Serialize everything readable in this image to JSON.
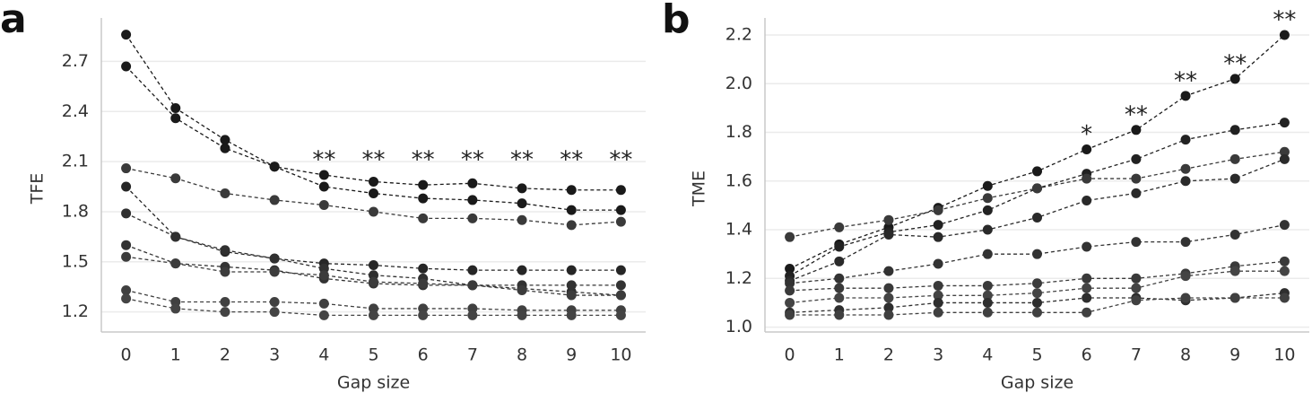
{
  "chart_data": [
    {
      "type": "line",
      "panel": "a",
      "ylabel": "TFE",
      "xlabel": "Gap size",
      "x": [
        0,
        1,
        2,
        3,
        4,
        5,
        6,
        7,
        8,
        9,
        10
      ],
      "xlim": [
        -0.5,
        10.5
      ],
      "xticks": [
        0,
        1,
        2,
        3,
        4,
        5,
        6,
        7,
        8,
        9,
        10
      ],
      "ylim": [
        1.08,
        2.96
      ],
      "yticks": [
        1.2,
        1.5,
        1.8,
        2.1,
        2.4,
        2.7
      ],
      "grid": true,
      "series": [
        {
          "color": "#1a1a1a",
          "values": [
            2.86,
            2.42,
            2.23,
            2.07,
            2.02,
            1.98,
            1.96,
            1.97,
            1.94,
            1.93,
            1.93
          ]
        },
        {
          "color": "#1a1a1a",
          "values": [
            2.67,
            2.36,
            2.18,
            2.07,
            1.95,
            1.91,
            1.88,
            1.87,
            1.85,
            1.81,
            1.81
          ]
        },
        {
          "color": "#3a3a3a",
          "values": [
            2.06,
            2.0,
            1.91,
            1.87,
            1.84,
            1.8,
            1.76,
            1.76,
            1.75,
            1.72,
            1.74
          ]
        },
        {
          "color": "#262626",
          "values": [
            1.95,
            1.65,
            1.56,
            1.52,
            1.49,
            1.48,
            1.46,
            1.45,
            1.45,
            1.45,
            1.45
          ]
        },
        {
          "color": "#303030",
          "values": [
            1.79,
            1.65,
            1.57,
            1.52,
            1.46,
            1.42,
            1.4,
            1.36,
            1.34,
            1.32,
            1.3
          ]
        },
        {
          "color": "#333333",
          "values": [
            1.6,
            1.49,
            1.47,
            1.45,
            1.4,
            1.37,
            1.36,
            1.36,
            1.36,
            1.36,
            1.36
          ]
        },
        {
          "color": "#3c3c3c",
          "values": [
            1.53,
            1.49,
            1.44,
            1.44,
            1.42,
            1.38,
            1.37,
            1.36,
            1.33,
            1.3,
            1.3
          ]
        },
        {
          "color": "#404040",
          "values": [
            1.33,
            1.26,
            1.26,
            1.26,
            1.25,
            1.22,
            1.22,
            1.22,
            1.21,
            1.21,
            1.21
          ]
        },
        {
          "color": "#444444",
          "values": [
            1.28,
            1.22,
            1.2,
            1.2,
            1.18,
            1.18,
            1.18,
            1.18,
            1.18,
            1.18,
            1.18
          ]
        }
      ],
      "annotations": [
        {
          "x": 4,
          "text": "**"
        },
        {
          "x": 5,
          "text": "**"
        },
        {
          "x": 6,
          "text": "**"
        },
        {
          "x": 7,
          "text": "**"
        },
        {
          "x": 8,
          "text": "**"
        },
        {
          "x": 9,
          "text": "**"
        },
        {
          "x": 10,
          "text": "**"
        }
      ]
    },
    {
      "type": "line",
      "panel": "b",
      "ylabel": "TME",
      "xlabel": "Gap size",
      "x": [
        0,
        1,
        2,
        3,
        4,
        5,
        6,
        7,
        8,
        9,
        10
      ],
      "xlim": [
        -0.5,
        10.5
      ],
      "xticks": [
        0,
        1,
        2,
        3,
        4,
        5,
        6,
        7,
        8,
        9,
        10
      ],
      "ylim": [
        0.98,
        2.27
      ],
      "yticks": [
        {
          "value": 1,
          "label": "1.0"
        },
        1.2,
        1.4,
        1.6,
        1.8,
        {
          "value": 2,
          "label": "2.0"
        },
        2.2
      ],
      "grid": true,
      "series": [
        {
          "color": "#1a1a1a",
          "values": [
            1.24,
            1.34,
            1.41,
            1.49,
            1.58,
            1.64,
            1.73,
            1.81,
            1.95,
            2.02,
            2.2
          ]
        },
        {
          "color": "#222222",
          "values": [
            1.21,
            1.33,
            1.39,
            1.42,
            1.48,
            1.57,
            1.63,
            1.69,
            1.77,
            1.81,
            1.84
          ]
        },
        {
          "color": "#3a3a3a",
          "values": [
            1.37,
            1.41,
            1.44,
            1.48,
            1.53,
            1.57,
            1.61,
            1.61,
            1.65,
            1.69,
            1.72
          ]
        },
        {
          "color": "#2a2a2a",
          "values": [
            1.19,
            1.27,
            1.38,
            1.37,
            1.4,
            1.45,
            1.52,
            1.55,
            1.6,
            1.61,
            1.69
          ]
        },
        {
          "color": "#333333",
          "values": [
            1.18,
            1.2,
            1.23,
            1.26,
            1.3,
            1.3,
            1.33,
            1.35,
            1.35,
            1.38,
            1.42
          ]
        },
        {
          "color": "#3a3a3a",
          "values": [
            1.15,
            1.16,
            1.16,
            1.17,
            1.17,
            1.18,
            1.2,
            1.2,
            1.22,
            1.25,
            1.27
          ]
        },
        {
          "color": "#444444",
          "values": [
            1.1,
            1.12,
            1.12,
            1.13,
            1.13,
            1.14,
            1.16,
            1.16,
            1.21,
            1.23,
            1.23
          ]
        },
        {
          "color": "#2e2e2e",
          "values": [
            1.06,
            1.07,
            1.08,
            1.1,
            1.1,
            1.1,
            1.12,
            1.12,
            1.11,
            1.12,
            1.14
          ]
        },
        {
          "color": "#404040",
          "values": [
            1.05,
            1.05,
            1.05,
            1.06,
            1.06,
            1.06,
            1.06,
            1.11,
            1.12,
            1.12,
            1.12
          ]
        }
      ],
      "annotations": [
        {
          "x": 6,
          "text": "*"
        },
        {
          "x": 7,
          "text": "**"
        },
        {
          "x": 8,
          "text": "**"
        },
        {
          "x": 9,
          "text": "**"
        },
        {
          "x": 10,
          "text": "**"
        }
      ]
    }
  ]
}
